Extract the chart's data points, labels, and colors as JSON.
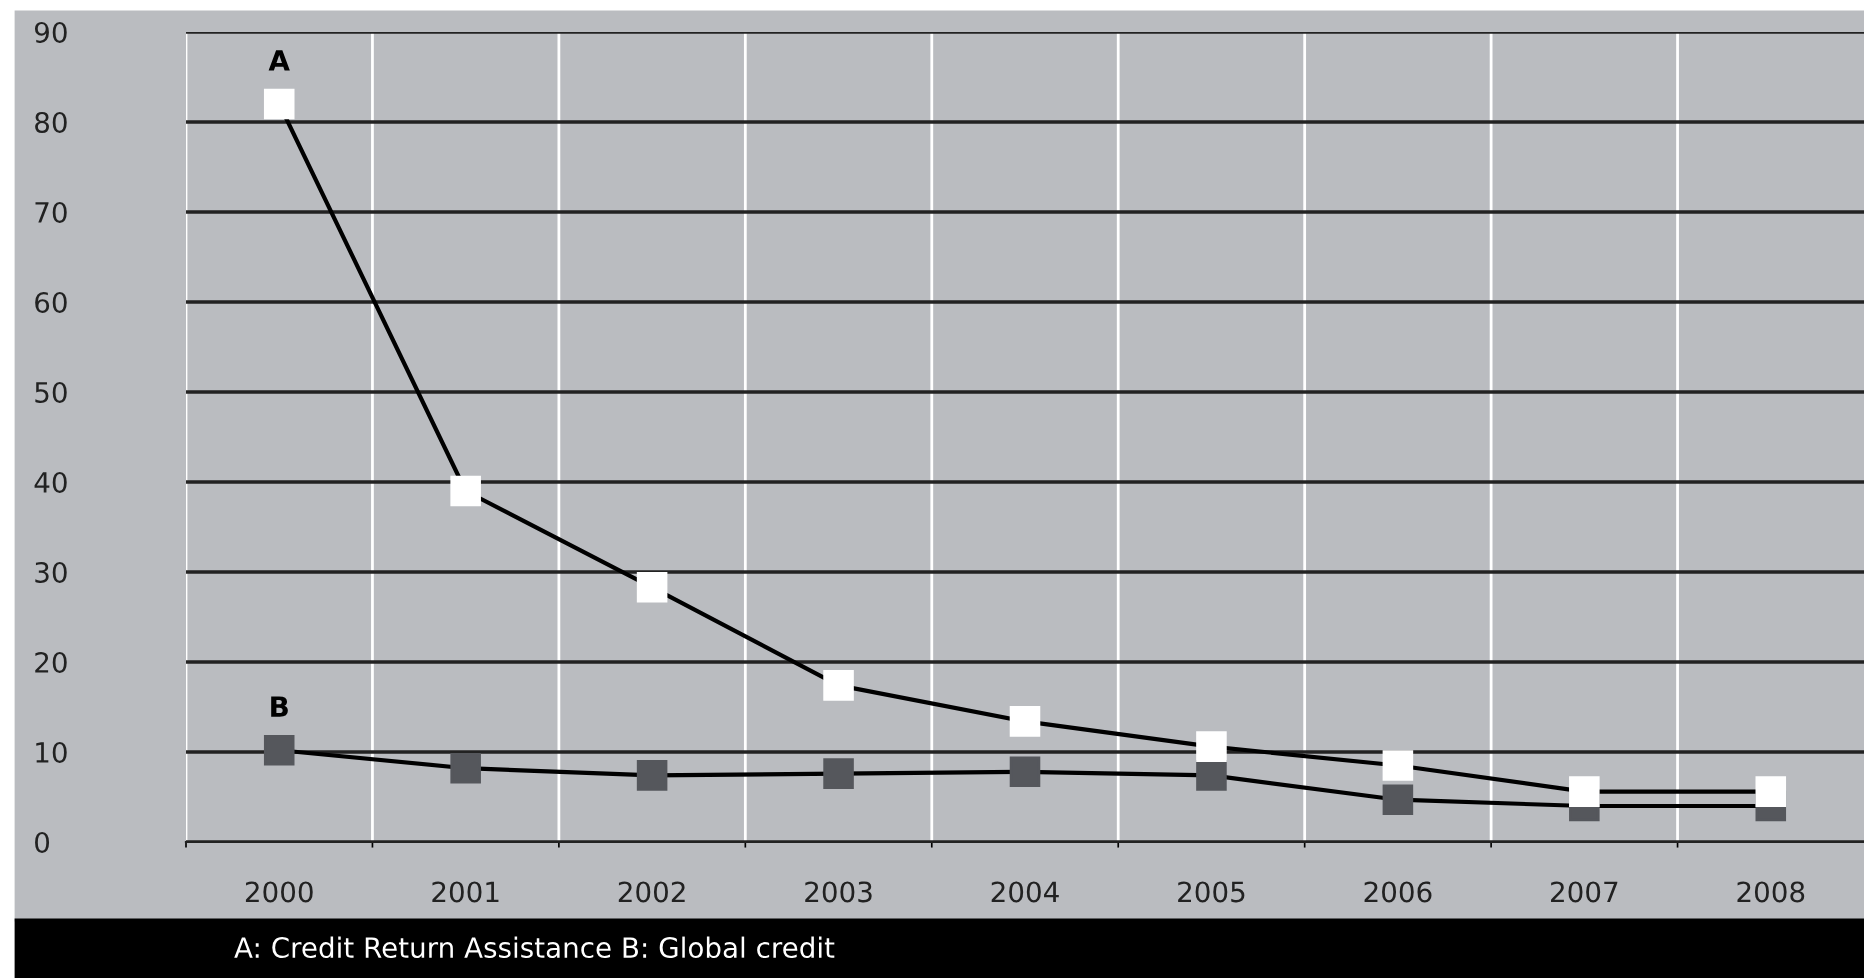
{
  "chart_data": {
    "type": "line",
    "categories": [
      "2000",
      "2001",
      "2002",
      "2003",
      "2004",
      "2005",
      "2006",
      "2007",
      "2008"
    ],
    "series": [
      {
        "name": "A",
        "color": "#ffffff",
        "values": [
          82,
          39,
          28.3,
          17.4,
          13.4,
          10.6,
          8.5,
          5.6,
          5.6
        ]
      },
      {
        "name": "B",
        "color": "#55575c",
        "values": [
          10.2,
          8.2,
          7.4,
          7.6,
          7.8,
          7.4,
          4.7,
          4.0,
          4.0
        ]
      }
    ],
    "ylim": [
      0,
      90
    ],
    "yticks": [
      0,
      10,
      20,
      30,
      40,
      50,
      60,
      70,
      80,
      90
    ],
    "grid": true,
    "legend": false,
    "marker": "square",
    "line_style": "solid",
    "annotations": [
      "A: Credit Return Assistance B: Global credit"
    ]
  }
}
